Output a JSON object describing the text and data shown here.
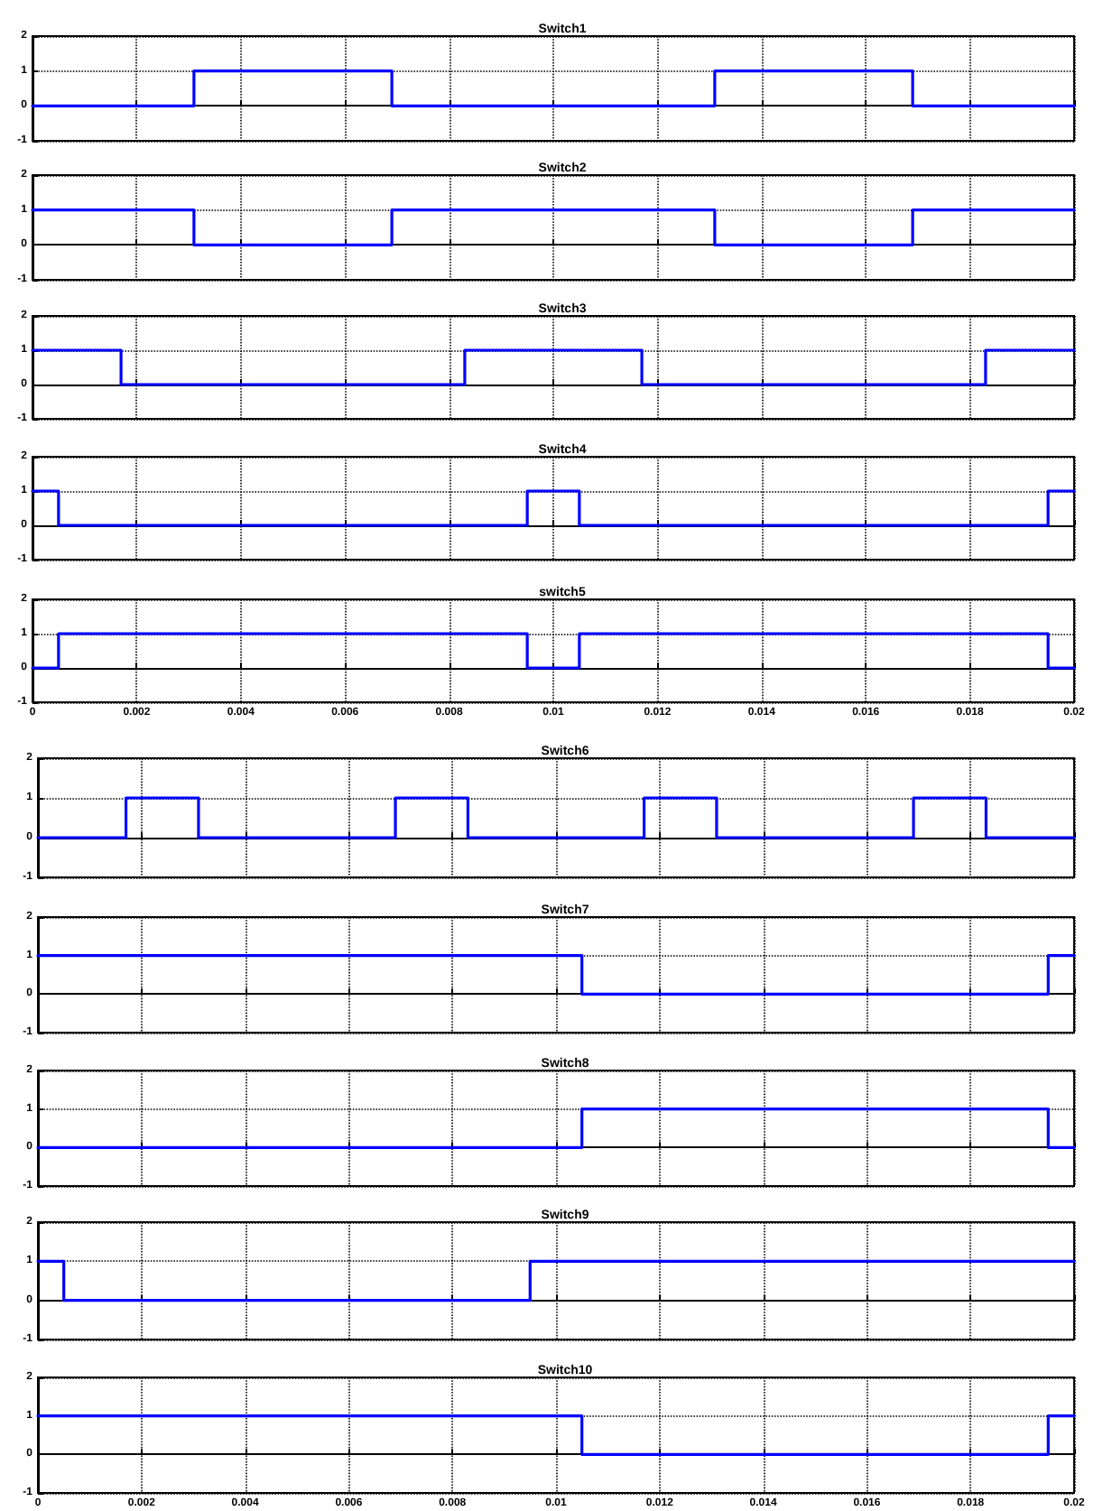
{
  "chart_data": [
    {
      "type": "step",
      "title": "Switch1",
      "series": [
        {
          "color": "#0000ff",
          "x": [
            0,
            0.0031,
            0.0069,
            0.0131,
            0.0169,
            0.02
          ],
          "values": [
            0,
            1,
            0,
            1,
            0,
            0
          ]
        }
      ],
      "xlim": [
        0,
        0.02
      ],
      "ylim": [
        -1,
        2
      ],
      "xticks": [
        0,
        0.002,
        0.004,
        0.006,
        0.008,
        0.01,
        0.012,
        0.014,
        0.016,
        0.018,
        0.02
      ],
      "yticks": [
        -1,
        0,
        1,
        2
      ],
      "grid": true,
      "marker": "none",
      "line_style": "solid",
      "tick_labels": "y"
    },
    {
      "type": "step",
      "title": "Switch2",
      "series": [
        {
          "color": "#0000ff",
          "x": [
            0,
            0.0031,
            0.0069,
            0.0131,
            0.0169,
            0.02
          ],
          "values": [
            1,
            0,
            1,
            0,
            1,
            1
          ]
        }
      ],
      "xlim": [
        0,
        0.02
      ],
      "ylim": [
        -1,
        2
      ],
      "xticks": [
        0,
        0.002,
        0.004,
        0.006,
        0.008,
        0.01,
        0.012,
        0.014,
        0.016,
        0.018,
        0.02
      ],
      "yticks": [
        -1,
        0,
        1,
        2
      ],
      "grid": true,
      "marker": "none",
      "line_style": "solid",
      "tick_labels": "y"
    },
    {
      "type": "step",
      "title": "Switch3",
      "series": [
        {
          "color": "#0000ff",
          "x": [
            0,
            0.0017,
            0.0083,
            0.0117,
            0.0183,
            0.02
          ],
          "values": [
            1,
            0,
            1,
            0,
            1,
            1
          ]
        }
      ],
      "xlim": [
        0,
        0.02
      ],
      "ylim": [
        -1,
        2
      ],
      "xticks": [
        0,
        0.002,
        0.004,
        0.006,
        0.008,
        0.01,
        0.012,
        0.014,
        0.016,
        0.018,
        0.02
      ],
      "yticks": [
        -1,
        0,
        1,
        2
      ],
      "grid": true,
      "marker": "none",
      "line_style": "solid",
      "tick_labels": "y"
    },
    {
      "type": "step",
      "title": "Switch4",
      "series": [
        {
          "color": "#0000ff",
          "x": [
            0,
            0.0005,
            0.0095,
            0.0105,
            0.0195,
            0.02
          ],
          "values": [
            1,
            0,
            1,
            0,
            1,
            1
          ]
        }
      ],
      "xlim": [
        0,
        0.02
      ],
      "ylim": [
        -1,
        2
      ],
      "xticks": [
        0,
        0.002,
        0.004,
        0.006,
        0.008,
        0.01,
        0.012,
        0.014,
        0.016,
        0.018,
        0.02
      ],
      "yticks": [
        -1,
        0,
        1,
        2
      ],
      "grid": true,
      "marker": "none",
      "line_style": "solid",
      "tick_labels": "y"
    },
    {
      "type": "step",
      "title": "switch5",
      "series": [
        {
          "color": "#0000ff",
          "x": [
            0,
            0.0005,
            0.0095,
            0.0105,
            0.0195,
            0.02
          ],
          "values": [
            0,
            1,
            0,
            1,
            0,
            0
          ]
        }
      ],
      "xlim": [
        0,
        0.02
      ],
      "ylim": [
        -1,
        2
      ],
      "xticks": [
        0,
        0.002,
        0.004,
        0.006,
        0.008,
        0.01,
        0.012,
        0.014,
        0.016,
        0.018,
        0.02
      ],
      "yticks": [
        -1,
        0,
        1,
        2
      ],
      "grid": true,
      "marker": "none",
      "line_style": "solid"
    },
    {
      "type": "step",
      "title": "Switch6",
      "series": [
        {
          "color": "#0000ff",
          "x": [
            0,
            0.0017,
            0.0031,
            0.0069,
            0.0083,
            0.0117,
            0.0131,
            0.0169,
            0.0183,
            0.02
          ],
          "values": [
            0,
            1,
            0,
            1,
            0,
            1,
            0,
            1,
            0,
            0
          ]
        }
      ],
      "xlim": [
        0,
        0.02
      ],
      "ylim": [
        -1,
        2
      ],
      "xticks": [
        0,
        0.002,
        0.004,
        0.006,
        0.008,
        0.01,
        0.012,
        0.014,
        0.016,
        0.018,
        0.02
      ],
      "yticks": [
        -1,
        0,
        1,
        2
      ],
      "grid": true,
      "marker": "none",
      "line_style": "solid",
      "tick_labels": "y"
    },
    {
      "type": "step",
      "title": "Switch7",
      "series": [
        {
          "color": "#0000ff",
          "x": [
            0,
            0.0105,
            0.0195,
            0.02
          ],
          "values": [
            1,
            0,
            1,
            1
          ]
        }
      ],
      "xlim": [
        0,
        0.02
      ],
      "ylim": [
        -1,
        2
      ],
      "xticks": [
        0,
        0.002,
        0.004,
        0.006,
        0.008,
        0.01,
        0.012,
        0.014,
        0.016,
        0.018,
        0.02
      ],
      "yticks": [
        -1,
        0,
        1,
        2
      ],
      "grid": true,
      "marker": "none",
      "line_style": "solid",
      "tick_labels": "y"
    },
    {
      "type": "step",
      "title": "Switch8",
      "series": [
        {
          "color": "#0000ff",
          "x": [
            0,
            0.0105,
            0.0195,
            0.02
          ],
          "values": [
            0,
            1,
            0,
            0
          ]
        }
      ],
      "xlim": [
        0,
        0.02
      ],
      "ylim": [
        -1,
        2
      ],
      "xticks": [
        0,
        0.002,
        0.004,
        0.006,
        0.008,
        0.01,
        0.012,
        0.014,
        0.016,
        0.018,
        0.02
      ],
      "yticks": [
        -1,
        0,
        1,
        2
      ],
      "grid": true,
      "marker": "none",
      "line_style": "solid",
      "tick_labels": "y"
    },
    {
      "type": "step",
      "title": "Switch9",
      "series": [
        {
          "color": "#0000ff",
          "x": [
            0,
            0.0005,
            0.0095,
            0.02
          ],
          "values": [
            1,
            0,
            1,
            1
          ]
        }
      ],
      "xlim": [
        0,
        0.02
      ],
      "ylim": [
        -1,
        2
      ],
      "xticks": [
        0,
        0.002,
        0.004,
        0.006,
        0.008,
        0.01,
        0.012,
        0.014,
        0.016,
        0.018,
        0.02
      ],
      "yticks": [
        -1,
        0,
        1,
        2
      ],
      "grid": true,
      "marker": "none",
      "line_style": "solid",
      "tick_labels": "y"
    },
    {
      "type": "step",
      "title": "Switch10",
      "series": [
        {
          "color": "#0000ff",
          "x": [
            0,
            0.0105,
            0.0195,
            0.02
          ],
          "values": [
            1,
            0,
            1,
            1
          ]
        }
      ],
      "xlim": [
        0,
        0.02
      ],
      "ylim": [
        -1,
        2
      ],
      "xticks": [
        0,
        0.002,
        0.004,
        0.006,
        0.008,
        0.01,
        0.012,
        0.014,
        0.016,
        0.018,
        0.02
      ],
      "yticks": [
        -1,
        0,
        1,
        2
      ],
      "grid": true,
      "marker": "none",
      "line_style": "solid"
    }
  ]
}
